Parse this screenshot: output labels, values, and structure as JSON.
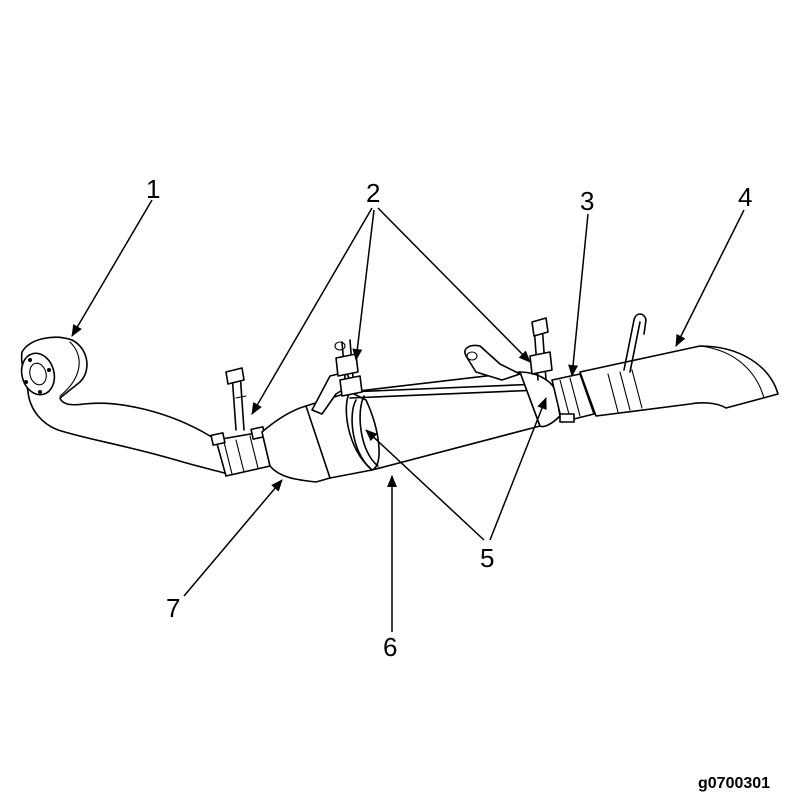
{
  "figure_code": "g0700301",
  "callouts": [
    {
      "id": "1",
      "label": "1"
    },
    {
      "id": "2",
      "label": "2"
    },
    {
      "id": "3",
      "label": "3"
    },
    {
      "id": "4",
      "label": "4"
    },
    {
      "id": "5",
      "label": "5"
    },
    {
      "id": "6",
      "label": "6"
    },
    {
      "id": "7",
      "label": "7"
    }
  ]
}
